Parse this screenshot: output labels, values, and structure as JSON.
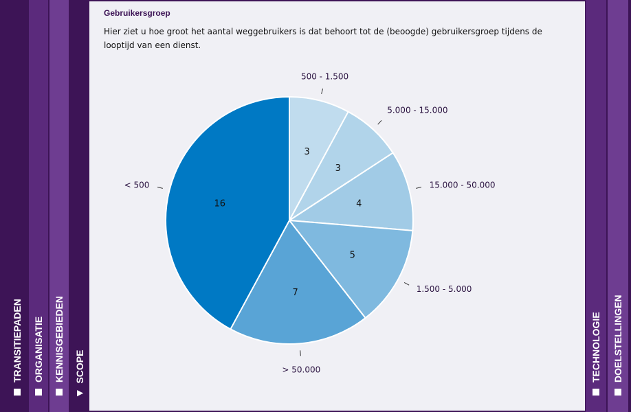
{
  "tabs_left": [
    {
      "label": "TRANSITIEPADEN",
      "marker": "square"
    },
    {
      "label": "ORGANISATIE",
      "marker": "square"
    },
    {
      "label": "KENNISGEBIEDEN",
      "marker": "square"
    },
    {
      "label": "SCOPE",
      "marker": "triangle"
    }
  ],
  "tabs_right": [
    {
      "label": "TECHNOLOGIE",
      "marker": "square"
    },
    {
      "label": "DOELSTELLINGEN",
      "marker": "square"
    }
  ],
  "panel": {
    "title": "Gebruikersgroep",
    "description": "Hier ziet u hoe groot het aantal weggebruikers is dat behoort tot de (beoogde) gebruikersgroep tijdens de looptijd van een dienst."
  },
  "chart_data": {
    "type": "pie",
    "slices": [
      {
        "label": "500 - 1.500",
        "value": 3,
        "color": "#c0dcee"
      },
      {
        "label": "5.000 - 15.000",
        "value": 3,
        "color": "#b1d4ea"
      },
      {
        "label": "15.000 - 50.000",
        "value": 4,
        "color": "#a1cbe6"
      },
      {
        "label": "1.500 - 5.000",
        "value": 5,
        "color": "#7fb9df"
      },
      {
        "label": "> 50.000",
        "value": 7,
        "color": "#59a4d6"
      },
      {
        "label": "< 500",
        "value": 16,
        "color": "#0079c4"
      }
    ]
  }
}
